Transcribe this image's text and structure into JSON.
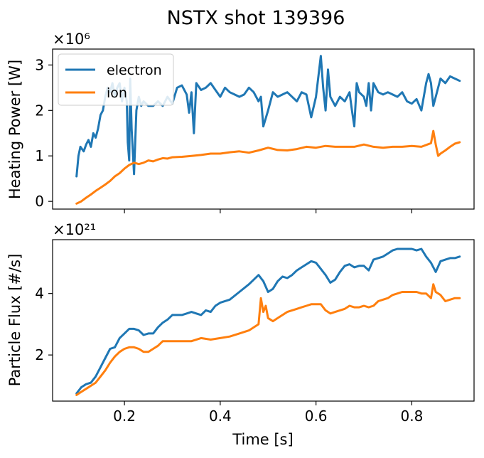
{
  "chart_data": {
    "title": "NSTX shot 139396",
    "xlabel": "Time [s]",
    "xlim": [
      0.05,
      0.93
    ],
    "xticks": [
      0.2,
      0.4,
      0.6,
      0.8
    ],
    "xtick_labels": [
      "0.2",
      "0.4",
      "0.6",
      "0.8"
    ],
    "colors": {
      "electron": "#1f77b4",
      "ion": "#ff7f0e"
    },
    "panels": [
      {
        "type": "line",
        "id": "heating",
        "ylabel": "Heating Power [W]",
        "offset_label": "×10⁶",
        "ylim": [
          -0.17,
          3.35
        ],
        "yticks": [
          0,
          1,
          2,
          3
        ],
        "ytick_labels": [
          "0",
          "1",
          "2",
          "3"
        ],
        "legend": {
          "placement": "upper-left",
          "entries": [
            "electron",
            "ion"
          ]
        },
        "series": [
          {
            "name": "electron",
            "x": [
              0.1,
              0.104,
              0.108,
              0.115,
              0.12,
              0.125,
              0.13,
              0.135,
              0.14,
              0.145,
              0.15,
              0.155,
              0.16,
              0.165,
              0.17,
              0.175,
              0.18,
              0.185,
              0.19,
              0.195,
              0.2,
              0.205,
              0.207,
              0.21,
              0.212,
              0.215,
              0.22,
              0.225,
              0.23,
              0.235,
              0.24,
              0.25,
              0.26,
              0.27,
              0.28,
              0.29,
              0.3,
              0.31,
              0.32,
              0.33,
              0.335,
              0.34,
              0.345,
              0.35,
              0.36,
              0.37,
              0.38,
              0.39,
              0.4,
              0.41,
              0.42,
              0.43,
              0.44,
              0.45,
              0.46,
              0.47,
              0.48,
              0.485,
              0.49,
              0.5,
              0.51,
              0.52,
              0.53,
              0.54,
              0.55,
              0.56,
              0.57,
              0.58,
              0.59,
              0.6,
              0.61,
              0.615,
              0.62,
              0.625,
              0.63,
              0.64,
              0.65,
              0.66,
              0.67,
              0.675,
              0.68,
              0.685,
              0.69,
              0.7,
              0.705,
              0.71,
              0.715,
              0.72,
              0.73,
              0.74,
              0.75,
              0.76,
              0.77,
              0.78,
              0.79,
              0.8,
              0.81,
              0.82,
              0.83,
              0.835,
              0.84,
              0.845,
              0.85,
              0.86,
              0.87,
              0.88,
              0.89,
              0.9
            ],
            "values": [
              0.55,
              1.0,
              1.2,
              1.1,
              1.25,
              1.35,
              1.2,
              1.5,
              1.4,
              1.6,
              1.9,
              2.0,
              2.3,
              2.5,
              2.4,
              2.6,
              2.3,
              2.5,
              2.6,
              2.2,
              2.5,
              2.2,
              1.3,
              0.9,
              2.7,
              1.6,
              0.6,
              2.0,
              2.3,
              2.1,
              2.2,
              2.1,
              2.1,
              2.2,
              2.1,
              2.3,
              2.15,
              2.5,
              2.55,
              2.35,
              1.95,
              2.4,
              1.5,
              2.6,
              2.45,
              2.5,
              2.6,
              2.45,
              2.3,
              2.5,
              2.4,
              2.35,
              2.3,
              2.35,
              2.5,
              2.4,
              2.2,
              2.3,
              1.65,
              2.0,
              2.4,
              2.3,
              2.35,
              2.4,
              2.3,
              2.2,
              2.4,
              2.35,
              1.85,
              2.3,
              3.2,
              2.5,
              2.0,
              2.9,
              2.3,
              2.1,
              2.3,
              2.2,
              2.4,
              2.0,
              1.65,
              2.6,
              2.4,
              2.3,
              2.1,
              2.6,
              2.0,
              2.6,
              2.4,
              2.35,
              2.4,
              2.35,
              2.3,
              2.4,
              2.2,
              2.15,
              2.25,
              2.0,
              2.6,
              2.8,
              2.6,
              2.1,
              2.3,
              2.7,
              2.6,
              2.75,
              2.7,
              2.65
            ]
          },
          {
            "name": "ion",
            "x": [
              0.1,
              0.11,
              0.12,
              0.13,
              0.14,
              0.15,
              0.16,
              0.17,
              0.18,
              0.19,
              0.2,
              0.21,
              0.22,
              0.23,
              0.24,
              0.25,
              0.26,
              0.27,
              0.28,
              0.29,
              0.3,
              0.32,
              0.34,
              0.36,
              0.38,
              0.4,
              0.42,
              0.44,
              0.46,
              0.48,
              0.5,
              0.52,
              0.54,
              0.56,
              0.58,
              0.6,
              0.62,
              0.64,
              0.66,
              0.68,
              0.7,
              0.72,
              0.74,
              0.76,
              0.78,
              0.8,
              0.82,
              0.84,
              0.845,
              0.85,
              0.855,
              0.86,
              0.87,
              0.88,
              0.89,
              0.9
            ],
            "values": [
              -0.05,
              0.0,
              0.08,
              0.15,
              0.23,
              0.3,
              0.37,
              0.45,
              0.55,
              0.62,
              0.72,
              0.8,
              0.85,
              0.82,
              0.85,
              0.9,
              0.88,
              0.92,
              0.95,
              0.94,
              0.97,
              0.98,
              1.0,
              1.02,
              1.05,
              1.05,
              1.08,
              1.1,
              1.07,
              1.12,
              1.18,
              1.13,
              1.12,
              1.15,
              1.2,
              1.18,
              1.22,
              1.2,
              1.2,
              1.2,
              1.25,
              1.2,
              1.18,
              1.2,
              1.2,
              1.22,
              1.2,
              1.28,
              1.55,
              1.25,
              1.0,
              1.05,
              1.12,
              1.2,
              1.27,
              1.3
            ]
          }
        ]
      },
      {
        "type": "line",
        "id": "flux",
        "ylabel": "Particle Flux [#/s]",
        "offset_label": "×10²¹",
        "ylim": [
          0.5,
          5.75
        ],
        "yticks": [
          2,
          4
        ],
        "ytick_labels": [
          "2",
          "4"
        ],
        "series": [
          {
            "name": "electron",
            "x": [
              0.1,
              0.11,
              0.12,
              0.13,
              0.14,
              0.15,
              0.16,
              0.17,
              0.18,
              0.19,
              0.2,
              0.21,
              0.22,
              0.23,
              0.24,
              0.25,
              0.26,
              0.27,
              0.28,
              0.29,
              0.3,
              0.31,
              0.32,
              0.33,
              0.34,
              0.35,
              0.36,
              0.37,
              0.38,
              0.39,
              0.4,
              0.42,
              0.44,
              0.46,
              0.48,
              0.49,
              0.5,
              0.51,
              0.52,
              0.53,
              0.54,
              0.55,
              0.56,
              0.57,
              0.58,
              0.59,
              0.6,
              0.61,
              0.62,
              0.63,
              0.64,
              0.65,
              0.66,
              0.67,
              0.68,
              0.69,
              0.7,
              0.71,
              0.72,
              0.73,
              0.74,
              0.75,
              0.76,
              0.77,
              0.78,
              0.79,
              0.8,
              0.81,
              0.82,
              0.83,
              0.84,
              0.85,
              0.86,
              0.87,
              0.88,
              0.89,
              0.9
            ],
            "values": [
              0.75,
              0.95,
              1.05,
              1.1,
              1.3,
              1.6,
              1.9,
              2.2,
              2.25,
              2.55,
              2.7,
              2.85,
              2.85,
              2.8,
              2.65,
              2.7,
              2.7,
              2.9,
              3.05,
              3.15,
              3.3,
              3.3,
              3.3,
              3.35,
              3.4,
              3.35,
              3.3,
              3.45,
              3.4,
              3.6,
              3.7,
              3.8,
              4.05,
              4.3,
              4.6,
              4.4,
              4.05,
              4.15,
              4.4,
              4.55,
              4.5,
              4.6,
              4.75,
              4.85,
              4.95,
              5.05,
              5.0,
              4.8,
              4.6,
              4.35,
              4.45,
              4.7,
              4.9,
              4.95,
              4.85,
              4.9,
              4.9,
              4.75,
              5.1,
              5.15,
              5.2,
              5.3,
              5.4,
              5.45,
              5.45,
              5.45,
              5.45,
              5.4,
              5.45,
              5.2,
              5.0,
              4.7,
              5.05,
              5.1,
              5.15,
              5.15,
              5.2
            ]
          },
          {
            "name": "ion",
            "x": [
              0.1,
              0.11,
              0.12,
              0.13,
              0.14,
              0.15,
              0.16,
              0.17,
              0.18,
              0.19,
              0.2,
              0.21,
              0.22,
              0.23,
              0.24,
              0.25,
              0.26,
              0.27,
              0.28,
              0.29,
              0.3,
              0.32,
              0.34,
              0.36,
              0.38,
              0.4,
              0.42,
              0.44,
              0.46,
              0.48,
              0.485,
              0.49,
              0.495,
              0.5,
              0.51,
              0.52,
              0.53,
              0.54,
              0.55,
              0.56,
              0.57,
              0.58,
              0.59,
              0.6,
              0.61,
              0.62,
              0.63,
              0.64,
              0.65,
              0.66,
              0.67,
              0.68,
              0.69,
              0.7,
              0.71,
              0.72,
              0.73,
              0.74,
              0.75,
              0.76,
              0.77,
              0.78,
              0.79,
              0.8,
              0.81,
              0.82,
              0.83,
              0.84,
              0.845,
              0.85,
              0.86,
              0.87,
              0.88,
              0.89,
              0.9
            ],
            "values": [
              0.7,
              0.8,
              0.9,
              1.0,
              1.1,
              1.3,
              1.5,
              1.75,
              1.95,
              2.1,
              2.2,
              2.25,
              2.25,
              2.2,
              2.1,
              2.1,
              2.2,
              2.3,
              2.45,
              2.45,
              2.45,
              2.45,
              2.45,
              2.55,
              2.5,
              2.55,
              2.6,
              2.7,
              2.8,
              3.0,
              3.85,
              3.4,
              3.6,
              3.2,
              3.1,
              3.2,
              3.3,
              3.4,
              3.45,
              3.5,
              3.55,
              3.6,
              3.65,
              3.65,
              3.65,
              3.45,
              3.35,
              3.4,
              3.45,
              3.5,
              3.6,
              3.55,
              3.55,
              3.6,
              3.55,
              3.6,
              3.75,
              3.8,
              3.85,
              3.95,
              4.0,
              4.05,
              4.05,
              4.05,
              4.05,
              4.0,
              4.0,
              3.85,
              4.3,
              4.05,
              3.95,
              3.75,
              3.8,
              3.85,
              3.85
            ]
          }
        ]
      }
    ]
  }
}
